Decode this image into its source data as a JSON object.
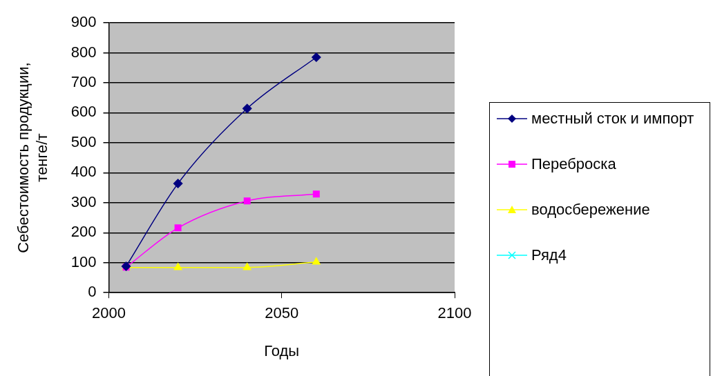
{
  "chart_data": {
    "type": "line",
    "xlabel": "Годы",
    "ylabel": "Себестоимость продукции, тенге/т",
    "x": [
      2005,
      2020,
      2040,
      2060
    ],
    "series": [
      {
        "name": "местный сток и импорт",
        "color": "#000080",
        "marker": "diamond",
        "values": [
          88,
          364,
          614,
          785
        ]
      },
      {
        "name": "Переброска",
        "color": "#ff00ff",
        "marker": "square",
        "values": [
          85,
          216,
          306,
          329
        ]
      },
      {
        "name": "водосбережение",
        "color": "#ffff00",
        "marker": "triangle",
        "values": [
          84,
          84,
          84,
          102
        ]
      },
      {
        "name": "Ряд4",
        "color": "#00ffff",
        "marker": "cross",
        "values": [
          null,
          null,
          null,
          null
        ]
      }
    ],
    "xlim": [
      2000,
      2100
    ],
    "xticks": [
      2000,
      2050,
      2100
    ],
    "ylim": [
      0,
      900
    ],
    "yticks": [
      0,
      100,
      200,
      300,
      400,
      500,
      600,
      700,
      800,
      900
    ],
    "grid": "y",
    "legend": "right"
  }
}
